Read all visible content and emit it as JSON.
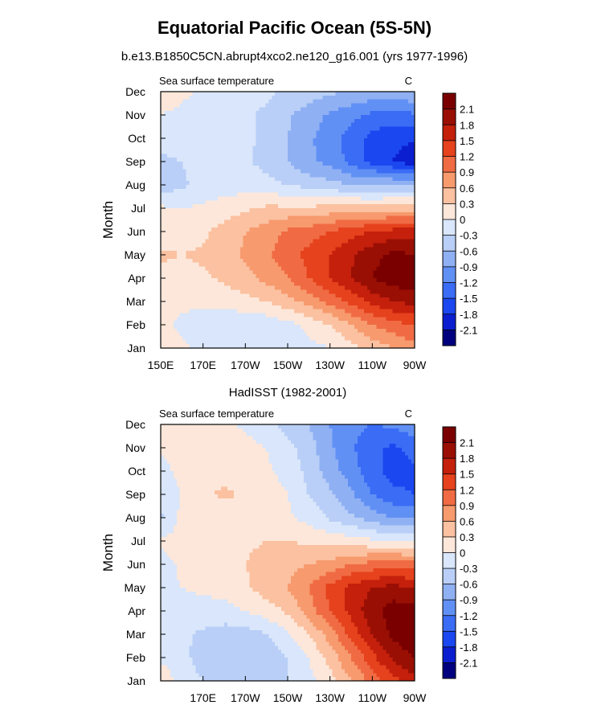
{
  "title": "Equatorial Pacific Ocean (5S-5N)",
  "subtitle": "b.e13.B1850C5CN.abrupt4xco2.ne120_g16.001 (yrs 1977-1996)",
  "colors": [
    "#00007f",
    "#0b1fd0",
    "#1b47f0",
    "#3a6cf5",
    "#6190f5",
    "#8fb0f3",
    "#b9cff7",
    "#d9e6fb",
    "#fde7da",
    "#fbc1a0",
    "#f79a6e",
    "#f06b43",
    "#e5421d",
    "#c4200c",
    "#9a0f04",
    "#7a0000"
  ],
  "chart_data": [
    {
      "type": "heatmap",
      "panel_title": "",
      "left_label": "Sea surface temperature",
      "units": "C",
      "ylabel": "Month",
      "y_ticks": [
        "Jan",
        "Feb",
        "Mar",
        "Apr",
        "May",
        "Jun",
        "Jul",
        "Aug",
        "Sep",
        "Oct",
        "Nov",
        "Dec"
      ],
      "x_ticks": [
        "150E",
        "170E",
        "170W",
        "150W",
        "130W",
        "110W",
        "90W"
      ],
      "x_tick_lons": [
        150,
        170,
        190,
        210,
        230,
        250,
        270
      ],
      "xlim": [
        150,
        270
      ],
      "levels": [
        -2.1,
        -1.8,
        -1.5,
        -1.2,
        -0.9,
        -0.6,
        -0.3,
        0,
        0.3,
        0.6,
        0.9,
        1.2,
        1.5,
        1.8,
        2.1
      ],
      "colorbar_labels": [
        "2.1",
        "1.8",
        "1.5",
        "1.2",
        "0.9",
        "0.6",
        "0.3",
        "0",
        "-0.3",
        "-0.6",
        "-0.9",
        "-1.2",
        "-1.5",
        "-1.8",
        "-2.1"
      ],
      "grid_lons": [
        150,
        160,
        170,
        180,
        190,
        200,
        210,
        220,
        230,
        240,
        250,
        260,
        270
      ],
      "values": [
        [
          0.25,
          0.1,
          -0.15,
          -0.2,
          -0.2,
          -0.2,
          -0.2,
          -0.1,
          0.0,
          0.2,
          0.4,
          0.6,
          0.8
        ],
        [
          0.1,
          -0.1,
          -0.2,
          -0.25,
          -0.25,
          -0.2,
          -0.1,
          0.1,
          0.3,
          0.6,
          0.9,
          1.1,
          1.2
        ],
        [
          0.15,
          0.1,
          0.1,
          0.15,
          0.2,
          0.3,
          0.5,
          0.7,
          1.0,
          1.3,
          1.6,
          1.8,
          1.9
        ],
        [
          0.2,
          0.2,
          0.25,
          0.35,
          0.5,
          0.7,
          0.9,
          1.2,
          1.5,
          1.8,
          2.1,
          2.3,
          2.3
        ],
        [
          0.35,
          0.3,
          0.35,
          0.45,
          0.65,
          0.85,
          1.05,
          1.3,
          1.5,
          1.75,
          2.0,
          2.2,
          2.1
        ],
        [
          0.1,
          0.15,
          0.25,
          0.4,
          0.6,
          0.75,
          0.95,
          1.05,
          1.2,
          1.4,
          1.5,
          1.6,
          1.6
        ],
        [
          0.05,
          0.0,
          0.05,
          0.15,
          0.25,
          0.35,
          0.35,
          0.35,
          0.4,
          0.45,
          0.4,
          0.45,
          0.5
        ],
        [
          -0.5,
          -0.35,
          -0.2,
          -0.15,
          -0.15,
          -0.2,
          -0.3,
          -0.4,
          -0.5,
          -0.6,
          -0.6,
          -0.6,
          -0.6
        ],
        [
          -0.35,
          -0.3,
          -0.2,
          -0.2,
          -0.25,
          -0.4,
          -0.6,
          -0.85,
          -1.0,
          -1.3,
          -1.6,
          -1.8,
          -2.0
        ],
        [
          -0.2,
          -0.2,
          -0.2,
          -0.2,
          -0.25,
          -0.35,
          -0.6,
          -0.85,
          -1.05,
          -1.35,
          -1.6,
          -1.75,
          -1.75
        ],
        [
          0.0,
          -0.1,
          -0.15,
          -0.2,
          -0.25,
          -0.35,
          -0.55,
          -0.75,
          -0.95,
          -1.1,
          -1.25,
          -1.3,
          -1.25
        ],
        [
          0.25,
          0.1,
          -0.1,
          -0.2,
          -0.2,
          -0.25,
          -0.35,
          -0.45,
          -0.55,
          -0.6,
          -0.7,
          -0.7,
          -0.6
        ]
      ]
    },
    {
      "type": "heatmap",
      "panel_title": "HadISST (1982-2001)",
      "left_label": "Sea surface temperature",
      "units": "C",
      "ylabel": "Month",
      "y_ticks": [
        "Jan",
        "Feb",
        "Mar",
        "Apr",
        "May",
        "Jun",
        "Jul",
        "Aug",
        "Sep",
        "Oct",
        "Nov",
        "Dec"
      ],
      "x_ticks": [
        "170E",
        "170W",
        "150W",
        "130W",
        "110W",
        "90W"
      ],
      "x_tick_lons": [
        170,
        190,
        210,
        230,
        250,
        270
      ],
      "xlim": [
        150,
        270
      ],
      "levels": [
        -2.1,
        -1.8,
        -1.5,
        -1.2,
        -0.9,
        -0.6,
        -0.3,
        0,
        0.3,
        0.6,
        0.9,
        1.2,
        1.5,
        1.8,
        2.1
      ],
      "colorbar_labels": [
        "2.1",
        "1.8",
        "1.5",
        "1.2",
        "0.9",
        "0.6",
        "0.3",
        "0",
        "-0.3",
        "-0.6",
        "-0.9",
        "-1.2",
        "-1.5",
        "-1.8",
        "-2.1"
      ],
      "grid_lons": [
        150,
        160,
        170,
        180,
        190,
        200,
        210,
        220,
        230,
        240,
        250,
        260,
        270
      ],
      "values": [
        [
          0.2,
          -0.1,
          -0.3,
          -0.35,
          -0.4,
          -0.35,
          -0.3,
          -0.1,
          0.2,
          0.6,
          1.0,
          1.4,
          1.7
        ],
        [
          -0.05,
          -0.2,
          -0.45,
          -0.6,
          -0.6,
          -0.5,
          -0.3,
          0.0,
          0.4,
          0.9,
          1.4,
          1.9,
          2.1
        ],
        [
          -0.1,
          -0.25,
          -0.35,
          -0.45,
          -0.45,
          -0.3,
          -0.05,
          0.3,
          0.75,
          1.3,
          1.8,
          2.2,
          2.3
        ],
        [
          -0.15,
          -0.1,
          -0.1,
          -0.1,
          0.0,
          0.15,
          0.35,
          0.75,
          1.2,
          1.6,
          2.0,
          2.25,
          2.2
        ],
        [
          -0.05,
          0.0,
          0.05,
          0.1,
          0.25,
          0.45,
          0.6,
          0.9,
          1.3,
          1.6,
          1.8,
          1.9,
          1.8
        ],
        [
          -0.1,
          0.05,
          0.1,
          0.2,
          0.3,
          0.4,
          0.5,
          0.6,
          0.7,
          0.9,
          1.0,
          1.05,
          1.0
        ],
        [
          0.05,
          0.1,
          0.15,
          0.2,
          0.25,
          0.3,
          0.3,
          0.25,
          0.2,
          0.15,
          0.05,
          0.0,
          0.0
        ],
        [
          -0.35,
          0.1,
          0.15,
          0.15,
          0.2,
          0.15,
          0.05,
          -0.1,
          -0.35,
          -0.55,
          -0.75,
          -0.9,
          -0.9
        ],
        [
          -0.25,
          0.0,
          0.25,
          0.35,
          0.25,
          0.15,
          0.0,
          -0.3,
          -0.55,
          -0.85,
          -1.2,
          -1.45,
          -1.5
        ],
        [
          -0.15,
          0.15,
          0.2,
          0.2,
          0.15,
          0.05,
          -0.1,
          -0.4,
          -0.75,
          -1.05,
          -1.4,
          -1.6,
          -1.55
        ],
        [
          0.05,
          0.1,
          0.15,
          0.15,
          0.1,
          0.0,
          -0.2,
          -0.45,
          -0.85,
          -1.15,
          -1.45,
          -1.55,
          -1.4
        ],
        [
          0.1,
          0.05,
          0.05,
          0.05,
          -0.05,
          -0.2,
          -0.4,
          -0.6,
          -0.9,
          -1.1,
          -1.2,
          -1.15,
          -0.95
        ]
      ]
    }
  ]
}
